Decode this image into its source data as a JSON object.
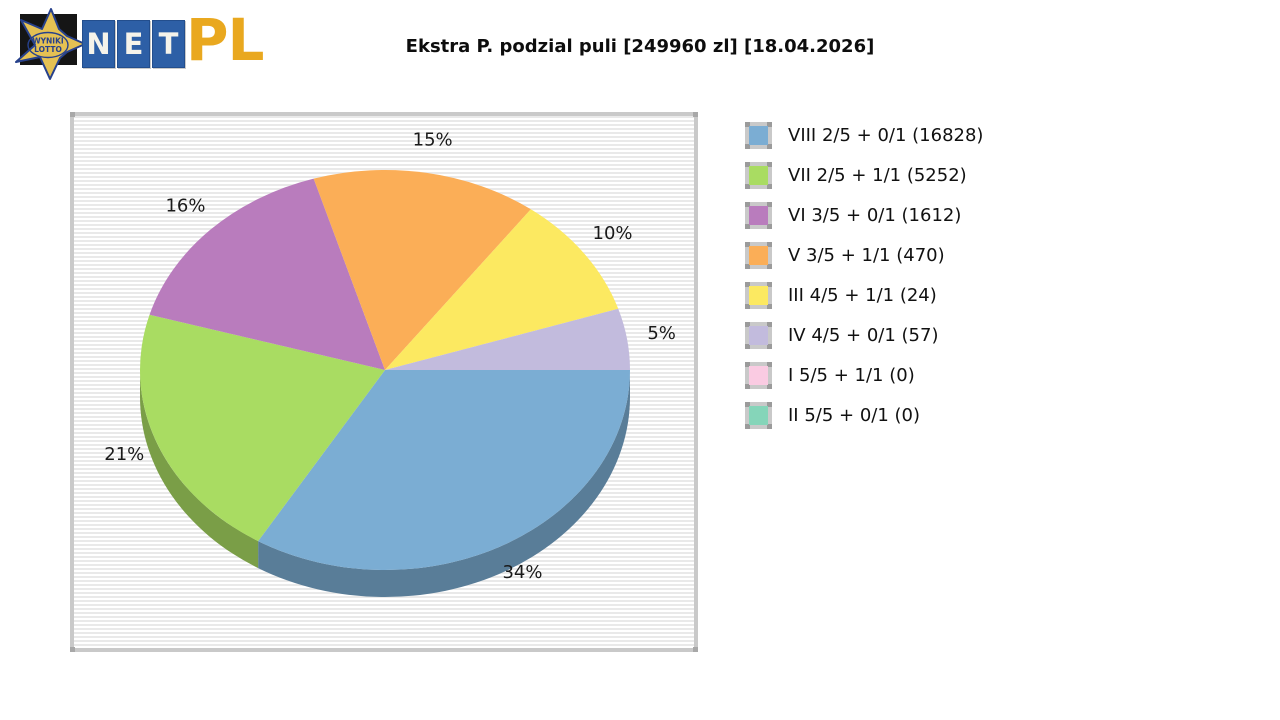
{
  "logo": {
    "star_line1": "WYNIKI",
    "star_line2": "LOTTO",
    "net_letters": [
      "N",
      "E",
      "T"
    ],
    "domain_suffix": "PL",
    "star_color": "#e5c153",
    "navy_color": "#27418c",
    "box_color": "#2d5fa6",
    "pl_color": "#e9a81f"
  },
  "title": "Ekstra P. podzial puli [249960 zl] [18.04.2026]",
  "chart_data": {
    "type": "pie",
    "three_d": true,
    "title": "Ekstra P. podzial puli [249960 zl] [18.04.2026]",
    "pool_amount_zl": 249960,
    "draw_date": "18.04.2026",
    "direction": "clockwise",
    "start_angle_deg": 0,
    "legend_position": "right",
    "label_format": "percent",
    "slices": [
      {
        "tier": "VIII",
        "combo": "2/5 + 0/1",
        "winners": 16828,
        "percent": 34,
        "color": "#7badd3",
        "legend_label": "VIII 2/5 + 0/1 (16828)"
      },
      {
        "tier": "VII",
        "combo": "2/5 + 1/1",
        "winners": 5252,
        "percent": 21,
        "color": "#a9dc62",
        "legend_label": "VII 2/5 + 1/1 (5252)"
      },
      {
        "tier": "VI",
        "combo": "3/5 + 0/1",
        "winners": 1612,
        "percent": 16,
        "color": "#b97cbd",
        "legend_label": "VI 3/5 + 0/1 (1612)"
      },
      {
        "tier": "V",
        "combo": "3/5 + 1/1",
        "winners": 470,
        "percent": 15,
        "color": "#fbae57",
        "legend_label": "V 3/5 + 1/1 (470)"
      },
      {
        "tier": "III",
        "combo": "4/5 + 1/1",
        "winners": 24,
        "percent": 10,
        "color": "#fce961",
        "legend_label": "III 4/5 + 1/1 (24)"
      },
      {
        "tier": "IV",
        "combo": "4/5 + 0/1",
        "winners": 57,
        "percent": 5,
        "color": "#c2bbdd",
        "legend_label": "IV 4/5 + 0/1 (57)"
      },
      {
        "tier": "I",
        "combo": "5/5 + 1/1",
        "winners": 0,
        "percent": 0,
        "color": "#facbe2",
        "legend_label": "I 5/5 + 1/1 (0)"
      },
      {
        "tier": "II",
        "combo": "5/5 + 0/1",
        "winners": 0,
        "percent": 0,
        "color": "#85d5b9",
        "legend_label": "II 5/5 + 0/1 (0)"
      }
    ]
  }
}
